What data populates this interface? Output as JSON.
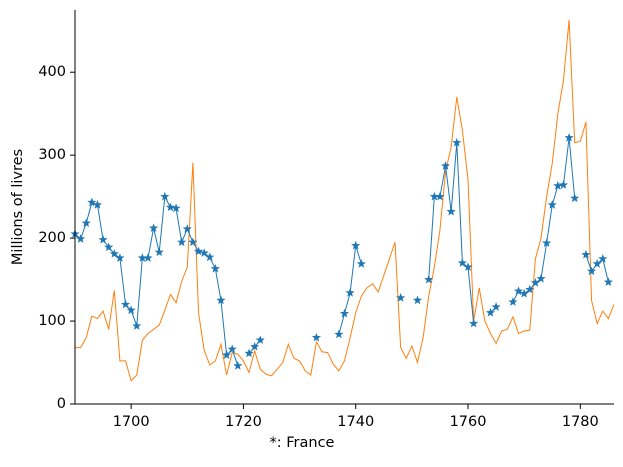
{
  "chart_data": {
    "type": "line",
    "xlabel": "*: France",
    "ylabel": "Millions of livres",
    "xlim": [
      1690,
      1786
    ],
    "ylim": [
      0,
      475
    ],
    "xticks": [
      1700,
      1720,
      1740,
      1760,
      1780
    ],
    "yticks": [
      0,
      100,
      200,
      300,
      400
    ],
    "x": [
      1690,
      1691,
      1692,
      1693,
      1694,
      1695,
      1696,
      1697,
      1698,
      1699,
      1700,
      1701,
      1702,
      1703,
      1704,
      1705,
      1706,
      1707,
      1708,
      1709,
      1710,
      1711,
      1712,
      1713,
      1714,
      1715,
      1716,
      1717,
      1718,
      1719,
      1720,
      1721,
      1722,
      1723,
      1724,
      1725,
      1726,
      1727,
      1728,
      1729,
      1730,
      1731,
      1732,
      1733,
      1734,
      1735,
      1736,
      1737,
      1738,
      1739,
      1740,
      1741,
      1742,
      1743,
      1744,
      1745,
      1746,
      1747,
      1748,
      1749,
      1750,
      1751,
      1752,
      1753,
      1754,
      1755,
      1756,
      1757,
      1758,
      1759,
      1760,
      1761,
      1762,
      1763,
      1764,
      1765,
      1766,
      1767,
      1768,
      1769,
      1770,
      1771,
      1772,
      1773,
      1774,
      1775,
      1776,
      1777,
      1778,
      1779,
      1780,
      1781,
      1782,
      1783,
      1784,
      1785,
      1786
    ],
    "series": [
      {
        "color": "#ff7f0e",
        "marker": "none",
        "values": [
          68,
          68,
          80,
          106,
          103,
          112,
          90,
          137,
          52,
          52,
          28,
          35,
          77,
          85,
          90,
          95,
          113,
          132,
          122,
          148,
          165,
          291,
          110,
          65,
          47,
          52,
          72,
          35,
          62,
          60,
          52,
          38,
          64,
          42,
          36,
          34,
          42,
          50,
          72,
          55,
          52,
          40,
          35,
          75,
          63,
          62,
          48,
          40,
          52,
          80,
          110,
          130,
          140,
          145,
          135,
          155,
          175,
          195,
          68,
          55,
          70,
          50,
          80,
          130,
          165,
          210,
          280,
          310,
          370,
          330,
          270,
          100,
          140,
          100,
          85,
          73,
          88,
          90,
          105,
          85,
          88,
          89,
          175,
          200,
          250,
          290,
          350,
          390,
          463,
          315,
          317,
          340,
          125,
          97,
          112,
          103,
          120
        ]
      },
      {
        "color": "#1f77b4",
        "marker": "star",
        "values": [
          205,
          199,
          218,
          243,
          240,
          198,
          189,
          181,
          176,
          120,
          113,
          94,
          176,
          176,
          212,
          183,
          250,
          237,
          236,
          195,
          211,
          195,
          184,
          182,
          177,
          163,
          125,
          59,
          66,
          46,
          null,
          61,
          69,
          77,
          null,
          null,
          null,
          null,
          null,
          null,
          null,
          null,
          null,
          80,
          null,
          null,
          null,
          84,
          109,
          134,
          191,
          169,
          null,
          null,
          null,
          null,
          null,
          null,
          128,
          null,
          null,
          125,
          null,
          150,
          250,
          250,
          287,
          232,
          315,
          170,
          165,
          97,
          null,
          null,
          110,
          117,
          null,
          null,
          123,
          136,
          133,
          138,
          146,
          151,
          194,
          240,
          263,
          264,
          321,
          248,
          null,
          180,
          160,
          169,
          175,
          147,
          null
        ]
      }
    ]
  }
}
